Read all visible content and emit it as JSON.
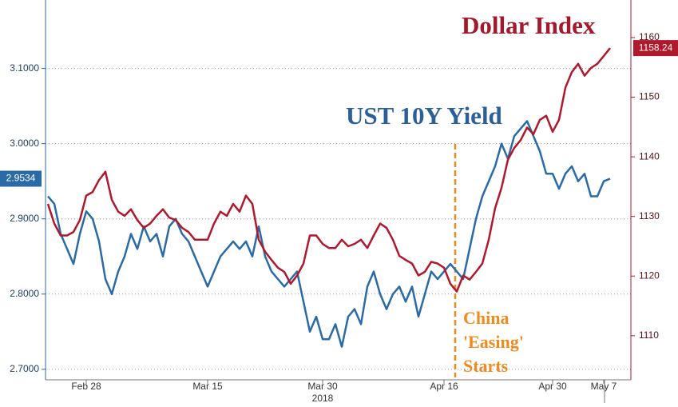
{
  "chart_data": {
    "type": "line",
    "categories": [
      null,
      null,
      null,
      null,
      null,
      null,
      "Feb 28",
      null,
      null,
      null,
      null,
      null,
      null,
      null,
      null,
      null,
      null,
      null,
      null,
      null,
      null,
      null,
      null,
      null,
      null,
      "Mar 15",
      null,
      null,
      null,
      null,
      null,
      null,
      null,
      null,
      null,
      null,
      null,
      null,
      null,
      null,
      null,
      null,
      null,
      "Mar 30",
      null,
      null,
      null,
      null,
      null,
      null,
      null,
      null,
      null,
      null,
      null,
      null,
      null,
      null,
      null,
      null,
      null,
      null,
      "Apr 16",
      null,
      null,
      null,
      null,
      null,
      null,
      null,
      null,
      null,
      null,
      null,
      null,
      null,
      null,
      null,
      null,
      "Apr 30",
      null,
      null,
      null,
      null,
      null,
      null,
      null,
      "May 7",
      null
    ],
    "x_year_label": "2018",
    "series": [
      {
        "name": "UST 10Y Yield",
        "color": "#2a6aa6",
        "axis": "y",
        "values": [
          2.93,
          2.92,
          2.88,
          2.86,
          2.84,
          2.88,
          2.91,
          2.9,
          2.87,
          2.82,
          2.8,
          2.83,
          2.85,
          2.88,
          2.86,
          2.89,
          2.87,
          2.88,
          2.85,
          2.89,
          2.9,
          2.88,
          2.87,
          2.85,
          2.83,
          2.81,
          2.83,
          2.85,
          2.86,
          2.87,
          2.86,
          2.87,
          2.85,
          2.89,
          2.85,
          2.83,
          2.82,
          2.81,
          2.82,
          2.83,
          2.79,
          2.75,
          2.77,
          2.74,
          2.74,
          2.76,
          2.73,
          2.77,
          2.78,
          2.76,
          2.81,
          2.83,
          2.8,
          2.78,
          2.8,
          2.81,
          2.79,
          2.81,
          2.77,
          2.8,
          2.83,
          2.82,
          2.83,
          2.84,
          2.83,
          2.82,
          2.86,
          2.9,
          2.93,
          2.95,
          2.97,
          3.0,
          2.98,
          3.01,
          3.02,
          3.03,
          3.01,
          2.99,
          2.96,
          2.96,
          2.94,
          2.96,
          2.97,
          2.95,
          2.96,
          2.93,
          2.93,
          2.95,
          2.9534
        ]
      },
      {
        "name": "Dollar Index",
        "color": "#b0182c",
        "axis": "y2",
        "values": [
          1132.1,
          1128.8,
          1126.8,
          1126.8,
          1127.4,
          1129.4,
          1133.5,
          1134.1,
          1136.1,
          1137.5,
          1132.8,
          1130.8,
          1130.1,
          1131.2,
          1129.4,
          1128.1,
          1128.8,
          1130.1,
          1131.2,
          1129.8,
          1129.4,
          1128.1,
          1127.4,
          1126.1,
          1126.1,
          1126.1,
          1128.8,
          1130.8,
          1130.1,
          1132.1,
          1130.8,
          1133.5,
          1132.1,
          1126.1,
          1124.1,
          1122.7,
          1121.4,
          1120.7,
          1118.7,
          1120.1,
          1122.1,
          1126.8,
          1126.8,
          1125.4,
          1124.7,
          1124.7,
          1126.1,
          1125.0,
          1125.4,
          1126.1,
          1124.7,
          1126.8,
          1128.8,
          1128.1,
          1126.1,
          1123.4,
          1122.7,
          1122.1,
          1120.1,
          1120.7,
          1122.4,
          1122.1,
          1121.4,
          1118.7,
          1117.4,
          1120.1,
          1119.4,
          1120.7,
          1122.1,
          1126.1,
          1131.4,
          1134.8,
          1139.5,
          1141.5,
          1142.8,
          1144.9,
          1143.8,
          1146.2,
          1146.9,
          1144.2,
          1146.2,
          1151.6,
          1154.2,
          1155.6,
          1153.6,
          1154.9,
          1155.6,
          1156.9,
          1158.24
        ]
      }
    ],
    "ylim": [
      2.686,
      3.191
    ],
    "yticks": [
      {
        "value": 2.7,
        "label": "2.7000"
      },
      {
        "value": 2.8,
        "label": "2.8000"
      },
      {
        "value": 2.9,
        "label": "2.9000"
      },
      {
        "value": 3.0,
        "label": "3.0000"
      },
      {
        "value": 3.1,
        "label": "3.1000"
      }
    ],
    "y2lim": [
      1102.6,
      1166.3
    ],
    "y2ticks": [
      1110,
      1120,
      1130,
      1140,
      1150,
      1160
    ],
    "grid": true,
    "annotation": {
      "lines": [
        "China",
        "'Easing'",
        "Starts"
      ],
      "color": "#f08a1c"
    }
  }
}
